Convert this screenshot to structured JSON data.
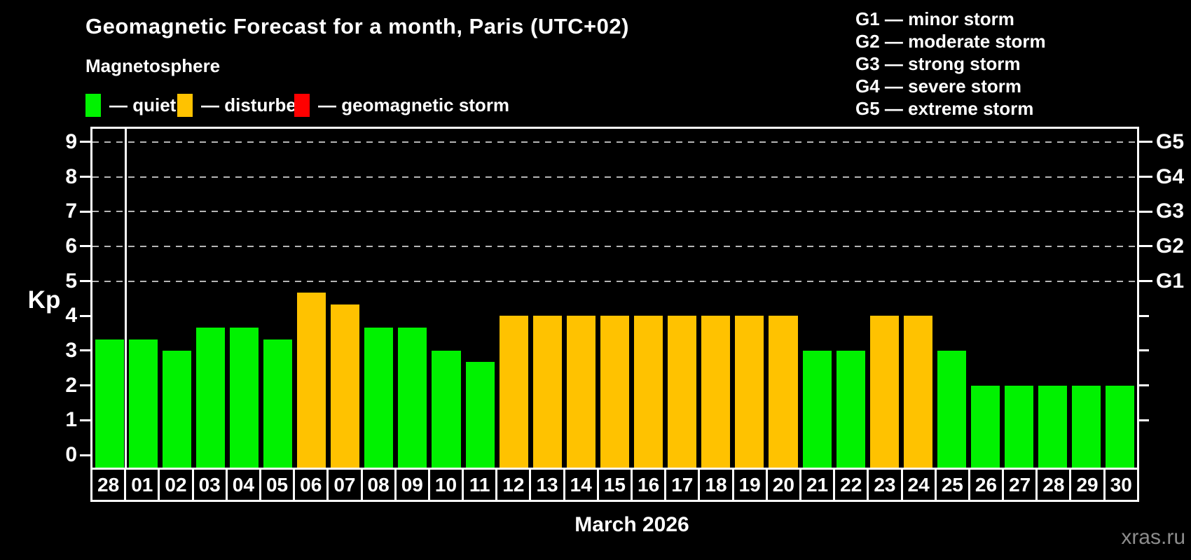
{
  "title": "Geomagnetic Forecast for a month, Paris (UTC+02)",
  "subtitle": "Magnetosphere",
  "legend": {
    "items": [
      {
        "state": "quiet",
        "label": "— quiet"
      },
      {
        "state": "disturbed",
        "label": "— disturbed"
      },
      {
        "state": "storm",
        "label": "— geomagnetic storm"
      }
    ]
  },
  "storm_scale": [
    "G1 — minor storm",
    "G2 — moderate storm",
    "G3 — strong storm",
    "G4 — severe storm",
    "G5 — extreme storm"
  ],
  "watermark": "xras.ru",
  "chart_data": {
    "type": "bar",
    "title": "Geomagnetic Forecast for a month, Paris (UTC+02)",
    "xlabel": "March 2026",
    "ylabel": "Kp",
    "ylim": [
      0,
      9
    ],
    "grid": "dashed horizontal lines at Kp 5-9 (G1-G5 levels)",
    "y_ticks": [
      "0",
      "1",
      "2",
      "3",
      "4",
      "5",
      "6",
      "7",
      "8",
      "9"
    ],
    "right_axis": [
      {
        "label": "G1",
        "kp": 5
      },
      {
        "label": "G2",
        "kp": 6
      },
      {
        "label": "G3",
        "kp": 7
      },
      {
        "label": "G4",
        "kp": 8
      },
      {
        "label": "G5",
        "kp": 9
      }
    ],
    "categories": [
      "28",
      "01",
      "02",
      "03",
      "04",
      "05",
      "06",
      "07",
      "08",
      "09",
      "10",
      "11",
      "12",
      "13",
      "14",
      "15",
      "16",
      "17",
      "18",
      "19",
      "20",
      "21",
      "22",
      "23",
      "24",
      "25",
      "26",
      "27",
      "28",
      "29",
      "30"
    ],
    "values": [
      3.33,
      3.33,
      3.0,
      3.67,
      3.67,
      3.33,
      4.67,
      4.33,
      3.67,
      3.67,
      3.0,
      2.67,
      4.0,
      4.0,
      4.0,
      4.0,
      4.0,
      4.0,
      4.0,
      4.0,
      4.0,
      3.0,
      3.0,
      4.0,
      4.0,
      3.0,
      2.0,
      2.0,
      2.0,
      2.0,
      2.0
    ],
    "states": [
      "quiet",
      "quiet",
      "quiet",
      "quiet",
      "quiet",
      "quiet",
      "disturbed",
      "disturbed",
      "quiet",
      "quiet",
      "quiet",
      "quiet",
      "disturbed",
      "disturbed",
      "disturbed",
      "disturbed",
      "disturbed",
      "disturbed",
      "disturbed",
      "disturbed",
      "disturbed",
      "quiet",
      "quiet",
      "disturbed",
      "disturbed",
      "quiet",
      "quiet",
      "quiet",
      "quiet",
      "quiet",
      "quiet"
    ],
    "month_boundary_after_index": 0,
    "colors": {
      "quiet": "#00f200",
      "disturbed": "#ffc200",
      "storm": "#ff0000",
      "axis": "#ffffff",
      "gridline": "#b5b5b5",
      "background": "#000000"
    }
  }
}
